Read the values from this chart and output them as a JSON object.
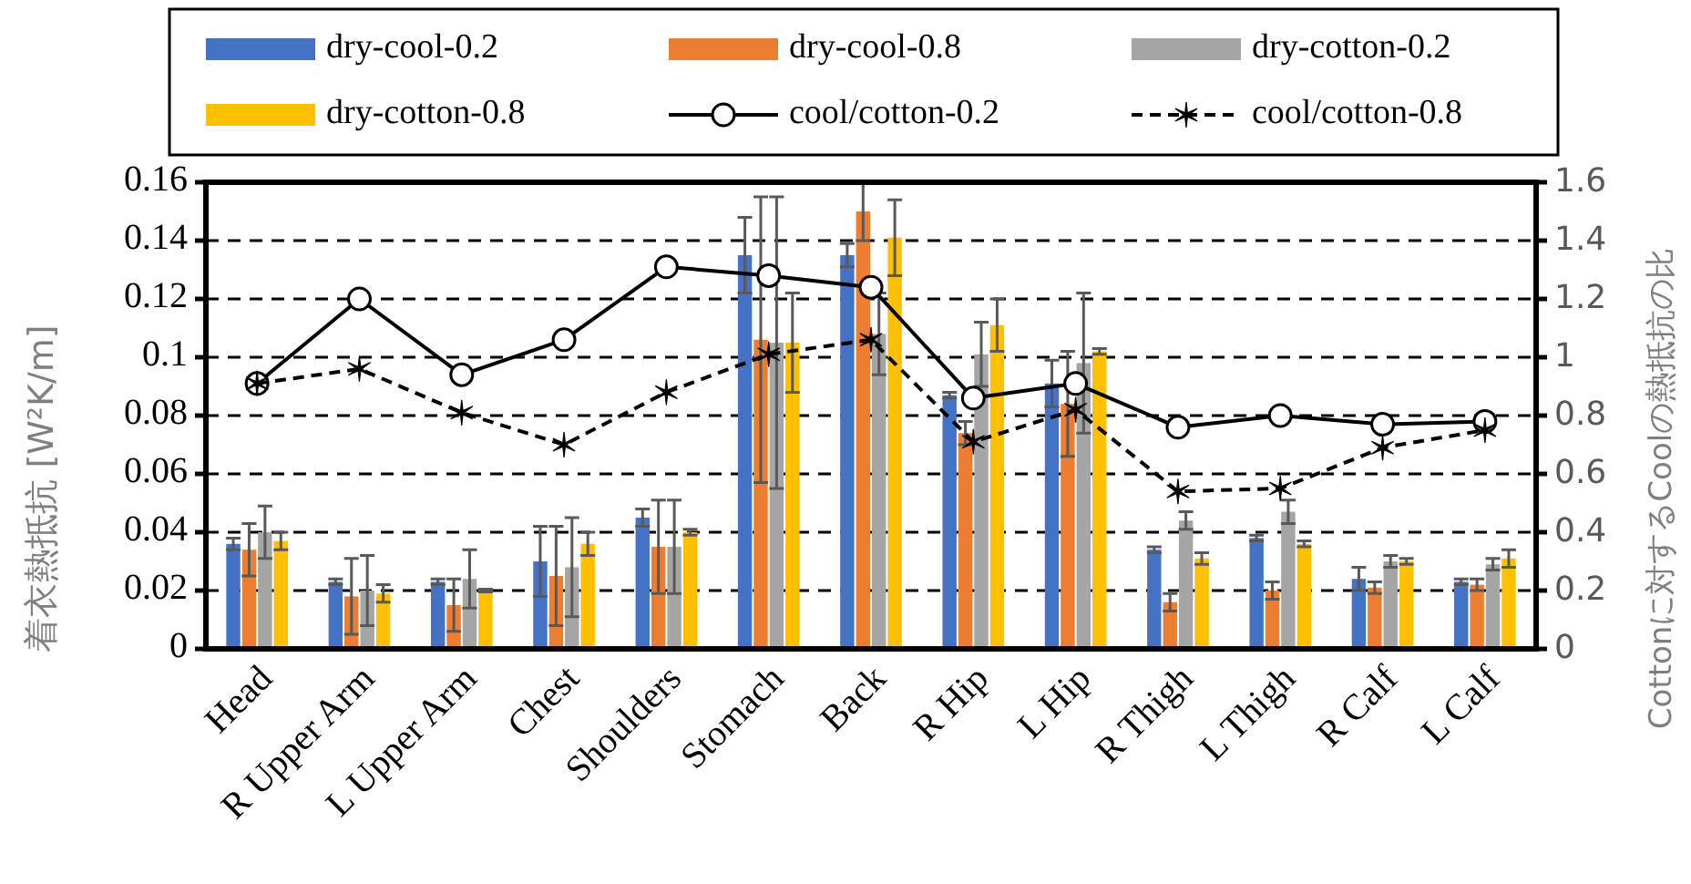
{
  "chart_data": {
    "type": "bar",
    "ylabel": "着衣熱抵抗 [W²K/m]",
    "y2label": "Cottonに対するCoolの熱抵抗の比",
    "categories": [
      "Head",
      "R Upper Arm",
      "L Upper Arm",
      "Chest",
      "Shoulders",
      "Stomach",
      "Back",
      "R Hip",
      "L Hip",
      "R Thigh",
      "L Thigh",
      "R Calf",
      "L Calf"
    ],
    "series": [
      {
        "name": "dry-cool-0.2",
        "color": "#4472c4",
        "values": [
          0.036,
          0.023,
          0.023,
          0.03,
          0.045,
          0.135,
          0.135,
          0.087,
          0.091,
          0.034,
          0.038,
          0.024,
          0.023
        ],
        "errors": [
          0.002,
          0.001,
          0.001,
          0.012,
          0.003,
          0.013,
          0.004,
          0.001,
          0.008,
          0.001,
          0.001,
          0.004,
          0.001
        ]
      },
      {
        "name": "dry-cool-0.8",
        "color": "#ed7d31",
        "values": [
          0.034,
          0.018,
          0.015,
          0.025,
          0.035,
          0.106,
          0.15,
          0.074,
          0.084,
          0.016,
          0.02,
          0.021,
          0.022
        ],
        "errors": [
          0.009,
          0.013,
          0.009,
          0.017,
          0.016,
          0.049,
          0.01,
          0.004,
          0.018,
          0.003,
          0.003,
          0.002,
          0.002
        ]
      },
      {
        "name": "dry-cotton-0.2",
        "color": "#a5a5a5",
        "values": [
          0.04,
          0.02,
          0.024,
          0.028,
          0.035,
          0.105,
          0.108,
          0.101,
          0.098,
          0.044,
          0.047,
          0.03,
          0.029
        ],
        "errors": [
          0.009,
          0.012,
          0.01,
          0.017,
          0.016,
          0.05,
          0.014,
          0.011,
          0.024,
          0.003,
          0.004,
          0.002,
          0.002
        ]
      },
      {
        "name": "dry-cotton-0.8",
        "color": "#ffc000",
        "values": [
          0.037,
          0.019,
          0.02,
          0.036,
          0.04,
          0.105,
          0.141,
          0.111,
          0.102,
          0.031,
          0.036,
          0.03,
          0.031
        ],
        "errors": [
          0.003,
          0.003,
          0.0005,
          0.004,
          0.001,
          0.017,
          0.013,
          0.009,
          0.001,
          0.002,
          0.001,
          0.001,
          0.003
        ]
      },
      {
        "name": "cool/cotton-0.2",
        "type": "line",
        "axis": "y2",
        "color": "#000000",
        "marker": "circle",
        "line_style": "solid",
        "values": [
          0.91,
          1.2,
          0.94,
          1.06,
          1.31,
          1.28,
          1.24,
          0.86,
          0.91,
          0.76,
          0.8,
          0.77,
          0.78
        ]
      },
      {
        "name": "cool/cotton-0.8",
        "type": "line",
        "axis": "y2",
        "color": "#000000",
        "marker": "cross",
        "line_style": "dashed",
        "values": [
          0.91,
          0.96,
          0.81,
          0.7,
          0.88,
          1.01,
          1.06,
          0.71,
          0.82,
          0.54,
          0.55,
          0.69,
          0.75
        ]
      }
    ],
    "ylim": [
      0,
      0.16
    ],
    "yticks": [
      0,
      0.02,
      0.04,
      0.06,
      0.08,
      0.1,
      0.12,
      0.14,
      0.16
    ],
    "y2lim": [
      0,
      1.6
    ],
    "y2ticks": [
      0,
      0.2,
      0.4,
      0.6,
      0.8,
      1,
      1.2,
      1.4,
      1.6
    ],
    "grid": "y",
    "legend": "top"
  }
}
